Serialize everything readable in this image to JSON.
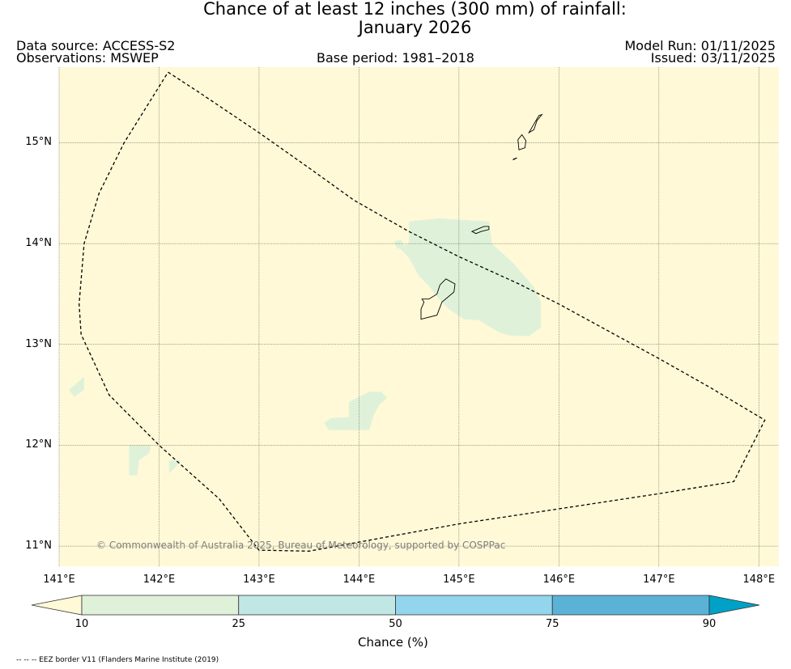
{
  "title": {
    "line1": "Chance of at least 12 inches (300  mm) of rainfall:",
    "line2": "January 2026"
  },
  "header": {
    "data_source": "Data source: ACCESS-S2",
    "observations": "Observations: MSWEP",
    "base_period": "Base period: 1981–2018",
    "model_run": "Model Run: 01/11/2025",
    "issued": "Issued: 03/11/2025"
  },
  "map": {
    "lon_range": [
      141.0,
      148.2
    ],
    "lat_range": [
      10.8,
      15.75
    ],
    "lon_ticks": [
      141,
      142,
      143,
      144,
      145,
      146,
      147,
      148
    ],
    "lon_tick_labels": [
      "141°E",
      "142°E",
      "143°E",
      "144°E",
      "145°E",
      "146°E",
      "147°E",
      "148°E"
    ],
    "lat_ticks": [
      11,
      12,
      13,
      14,
      15
    ],
    "lat_tick_labels": [
      "11°N",
      "12°N",
      "13°N",
      "14°N",
      "15°N"
    ],
    "gridlines": true,
    "background_color": "#fff9d7",
    "copyright": "© Commonwealth of Australia 2025, Bureau of Meteorology, supported by COSPPac",
    "eez_boundary": [
      [
        142.09,
        15.7
      ],
      [
        142.4,
        15.5
      ],
      [
        143.0,
        15.1
      ],
      [
        143.5,
        14.75
      ],
      [
        143.95,
        14.43
      ],
      [
        144.5,
        14.12
      ],
      [
        145.0,
        13.87
      ],
      [
        145.6,
        13.6
      ],
      [
        146.0,
        13.4
      ],
      [
        146.5,
        13.13
      ],
      [
        147.0,
        12.86
      ],
      [
        147.5,
        12.58
      ],
      [
        148.06,
        12.25
      ],
      [
        147.75,
        11.64
      ],
      [
        147.0,
        11.52
      ],
      [
        146.0,
        11.37
      ],
      [
        145.0,
        11.22
      ],
      [
        144.0,
        11.04
      ],
      [
        143.5,
        10.95
      ],
      [
        143.0,
        10.96
      ],
      [
        142.6,
        11.47
      ],
      [
        142.0,
        12.0
      ],
      [
        141.5,
        12.5
      ],
      [
        141.22,
        13.1
      ],
      [
        141.2,
        13.4
      ],
      [
        141.25,
        14.0
      ],
      [
        141.4,
        14.5
      ],
      [
        141.65,
        15.0
      ],
      [
        142.09,
        15.7
      ]
    ],
    "islands": [
      {
        "name": "Guam",
        "points": [
          [
            144.62,
            13.25
          ],
          [
            144.78,
            13.29
          ],
          [
            144.83,
            13.42
          ],
          [
            144.95,
            13.52
          ],
          [
            144.96,
            13.6
          ],
          [
            144.87,
            13.65
          ],
          [
            144.81,
            13.59
          ],
          [
            144.78,
            13.5
          ],
          [
            144.7,
            13.45
          ],
          [
            144.63,
            13.45
          ],
          [
            144.65,
            13.42
          ],
          [
            144.62,
            13.35
          ],
          [
            144.62,
            13.25
          ]
        ]
      },
      {
        "name": "Rota",
        "points": [
          [
            145.13,
            14.12
          ],
          [
            145.25,
            14.17
          ],
          [
            145.3,
            14.17
          ],
          [
            145.3,
            14.14
          ],
          [
            145.22,
            14.12
          ],
          [
            145.17,
            14.1
          ],
          [
            145.13,
            14.12
          ]
        ]
      },
      {
        "name": "Saipan",
        "points": [
          [
            145.7,
            15.1
          ],
          [
            145.74,
            15.17
          ],
          [
            145.8,
            15.27
          ],
          [
            145.83,
            15.28
          ],
          [
            145.78,
            15.22
          ],
          [
            145.75,
            15.13
          ],
          [
            145.7,
            15.1
          ]
        ]
      },
      {
        "name": "Tinian",
        "points": [
          [
            145.6,
            14.93
          ],
          [
            145.66,
            14.95
          ],
          [
            145.67,
            15.02
          ],
          [
            145.63,
            15.08
          ],
          [
            145.59,
            15.03
          ],
          [
            145.6,
            14.93
          ]
        ]
      },
      {
        "name": "Aguijan",
        "points": [
          [
            145.54,
            14.83
          ],
          [
            145.58,
            14.85
          ],
          [
            145.55,
            14.84
          ],
          [
            145.54,
            14.83
          ]
        ]
      }
    ],
    "rain_areas": [
      {
        "class": "10-25",
        "points": [
          [
            144.8,
            14.25
          ],
          [
            145.3,
            14.22
          ],
          [
            145.33,
            14.0
          ],
          [
            145.55,
            13.8
          ],
          [
            145.75,
            13.57
          ],
          [
            145.82,
            13.42
          ],
          [
            145.82,
            13.17
          ],
          [
            145.7,
            13.08
          ],
          [
            145.5,
            13.09
          ],
          [
            145.4,
            13.12
          ],
          [
            145.3,
            13.18
          ],
          [
            145.2,
            13.24
          ],
          [
            145.05,
            13.25
          ],
          [
            144.9,
            13.35
          ],
          [
            144.8,
            13.45
          ],
          [
            144.7,
            13.58
          ],
          [
            144.6,
            13.68
          ],
          [
            144.5,
            13.86
          ],
          [
            144.4,
            13.96
          ],
          [
            144.5,
            14.0
          ],
          [
            144.5,
            14.22
          ],
          [
            144.8,
            14.25
          ]
        ]
      },
      {
        "class": "10-25",
        "points": [
          [
            144.35,
            14.02
          ],
          [
            144.42,
            14.04
          ],
          [
            144.45,
            13.97
          ],
          [
            144.38,
            13.95
          ],
          [
            144.35,
            14.02
          ]
        ]
      },
      {
        "class": "10-25",
        "points": [
          [
            143.9,
            12.43
          ],
          [
            144.1,
            12.53
          ],
          [
            144.22,
            12.53
          ],
          [
            144.28,
            12.47
          ],
          [
            144.2,
            12.4
          ],
          [
            144.15,
            12.3
          ],
          [
            144.1,
            12.15
          ],
          [
            143.7,
            12.15
          ],
          [
            143.65,
            12.22
          ],
          [
            143.72,
            12.27
          ],
          [
            143.9,
            12.28
          ],
          [
            143.9,
            12.43
          ]
        ]
      },
      {
        "class": "10-25",
        "points": [
          [
            141.1,
            12.55
          ],
          [
            141.25,
            12.68
          ],
          [
            141.25,
            12.55
          ],
          [
            141.15,
            12.48
          ],
          [
            141.1,
            12.55
          ]
        ]
      },
      {
        "class": "10-25",
        "points": [
          [
            141.7,
            12.0
          ],
          [
            141.92,
            12.0
          ],
          [
            141.9,
            11.92
          ],
          [
            141.8,
            11.85
          ],
          [
            141.78,
            11.7
          ],
          [
            141.7,
            11.7
          ],
          [
            141.7,
            12.0
          ]
        ]
      },
      {
        "class": "10-25",
        "points": [
          [
            142.1,
            11.85
          ],
          [
            142.22,
            11.85
          ],
          [
            142.16,
            11.78
          ],
          [
            142.1,
            11.72
          ],
          [
            142.1,
            11.85
          ]
        ]
      }
    ]
  },
  "colorbar": {
    "label": "Chance (%)",
    "ticks": [
      "10",
      "25",
      "50",
      "75",
      "90"
    ],
    "colors": [
      "#fff9d7",
      "#dff2d9",
      "#c1e7e5",
      "#92d5ec",
      "#5ab3d7",
      "#00a1c7"
    ]
  },
  "footnote": "-- -- -- EEZ border V11 (Flanders Marine Institute (2019)"
}
